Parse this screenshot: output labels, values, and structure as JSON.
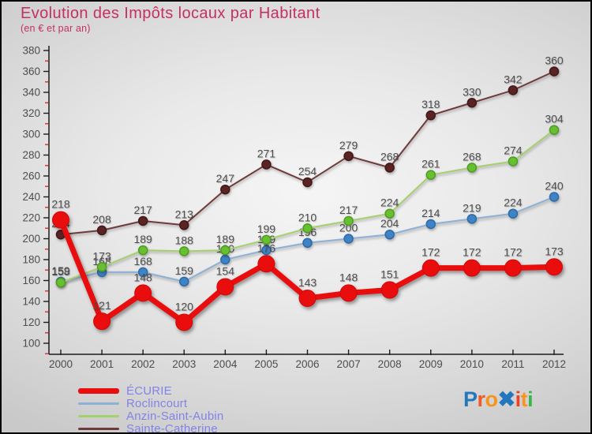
{
  "header": {
    "title": "Evolution des Impôts locaux par Habitant",
    "subtitle": "(en € et par an)"
  },
  "colors": {
    "title_pink": "#c5315f",
    "point_label_gray": "#4d4d4d",
    "axis_black": "#1c1c1c",
    "minor_tick_red": "#e23b3b",
    "legend_text_blue": "#8383e6"
  },
  "chart_data": {
    "type": "line",
    "x": [
      "2000",
      "2001",
      "2002",
      "2003",
      "2004",
      "2005",
      "2006",
      "2007",
      "2008",
      "2009",
      "2010",
      "2011",
      "2012"
    ],
    "ylim": [
      100,
      380
    ],
    "ytick_major_step": 20,
    "ytick_minor_step": 10,
    "grid": false,
    "legend_position": "bottom-left",
    "series": [
      {
        "name": "ÉCURIE",
        "values": [
          218,
          121,
          148,
          120,
          154,
          176,
          143,
          148,
          151,
          172,
          172,
          172,
          173
        ],
        "line_color": "#e90d0d",
        "dot_color": "#e90d0d",
        "dot_stroke": "#ce0a0a",
        "thick": true
      },
      {
        "name": "Roclincourt",
        "values": [
          159,
          168,
          168,
          159,
          180,
          189,
          196,
          200,
          204,
          214,
          219,
          224,
          240
        ],
        "line_color": "#8cb0d6",
        "dot_color": "#3e83c6",
        "dot_stroke": "#2e6ba6",
        "thick": false
      },
      {
        "name": "Anzin-Saint-Aubin",
        "values": [
          158,
          173,
          189,
          188,
          189,
          199,
          210,
          217,
          224,
          261,
          268,
          274,
          304
        ],
        "line_color": "#a5d06e",
        "dot_color": "#67c031",
        "dot_stroke": "#4f9c22",
        "thick": false
      },
      {
        "name": "Sainte-Catherine",
        "values": [
          204,
          208,
          217,
          213,
          247,
          271,
          254,
          279,
          268,
          318,
          330,
          342,
          360
        ],
        "line_color": "#6e3a3a",
        "dot_color": "#5a2424",
        "dot_stroke": "#421717",
        "thick": false
      }
    ]
  },
  "logo": {
    "letters": [
      {
        "ch": "P",
        "color": "#2577bd"
      },
      {
        "ch": "r",
        "color": "#f15a24"
      },
      {
        "ch": "o",
        "color": "#f7931e"
      },
      {
        "ch": "✖",
        "color": "#2577bd"
      },
      {
        "ch": "i",
        "color": "#ef4123"
      },
      {
        "ch": "t",
        "color": "#f7931e"
      },
      {
        "ch": "i",
        "color": "#39b54a"
      }
    ]
  }
}
